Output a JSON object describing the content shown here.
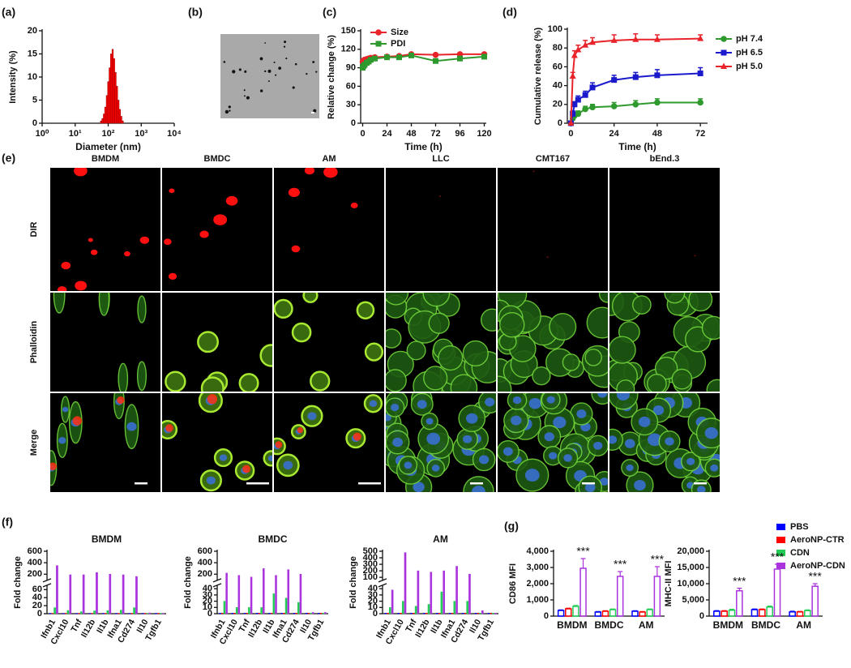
{
  "chart_data": [
    {
      "type": "histogram",
      "panel_label": "(a)",
      "xlabel": "Diameter (nm)",
      "ylabel": "Intensity (%)",
      "xscale": "log",
      "xlim": [
        1,
        10000
      ],
      "xticks": [
        {
          "value": 1,
          "label": "10⁰"
        },
        {
          "value": 10,
          "label": "10¹"
        },
        {
          "value": 100,
          "label": "10²"
        },
        {
          "value": 1000,
          "label": "10³"
        },
        {
          "value": 10000,
          "label": "10⁴"
        }
      ],
      "ylim": [
        0,
        20
      ],
      "yticks": [
        0,
        5,
        10,
        15,
        20
      ],
      "bins": [
        58,
        64,
        71,
        78,
        87,
        96,
        106,
        117,
        130,
        143,
        158,
        175,
        193,
        214,
        236,
        261,
        289
      ],
      "values": [
        0.5,
        1,
        2,
        3.5,
        6,
        9,
        12,
        15,
        16,
        14,
        11,
        8,
        5,
        3,
        1.5,
        0.5
      ],
      "color": "#ff0000"
    },
    {
      "type": "line",
      "panel_label": "(c)",
      "xlabel": "Time (h)",
      "ylabel": "Relative change (%)",
      "xlim": [
        -2,
        122
      ],
      "xticks": [
        0,
        24,
        48,
        72,
        96,
        120
      ],
      "ylim": [
        0,
        150
      ],
      "yticks": [
        0,
        30,
        60,
        90,
        120,
        150
      ],
      "x": [
        0,
        1,
        2,
        4,
        6,
        8,
        12,
        24,
        36,
        48,
        72,
        96,
        120
      ],
      "legend": "top-left",
      "series": [
        {
          "name": "Size",
          "color": "#e8232a",
          "marker": "circle",
          "values": [
            100,
            102,
            103,
            104,
            105,
            106,
            107,
            108,
            109,
            112,
            111,
            112,
            112
          ]
        },
        {
          "name": "PDI",
          "color": "#2e9a2e",
          "marker": "square",
          "values": [
            90,
            93,
            95,
            98,
            100,
            103,
            105,
            107,
            107,
            110,
            101,
            105,
            108
          ]
        }
      ]
    },
    {
      "type": "line",
      "panel_label": "(d)",
      "xlabel": "Time (h)",
      "ylabel": "Cumulative release (%)",
      "xlim": [
        -2,
        76
      ],
      "xticks": [
        0,
        24,
        48,
        72
      ],
      "ylim": [
        0,
        100
      ],
      "yticks": [
        0,
        20,
        40,
        60,
        80,
        100
      ],
      "x": [
        0,
        1,
        2,
        4,
        8,
        12,
        24,
        36,
        48,
        72
      ],
      "legend": "right",
      "series": [
        {
          "name": "pH 7.4",
          "color": "#2e9a2e",
          "marker": "circle",
          "values": [
            0,
            5,
            8,
            10,
            15,
            17,
            18,
            20,
            22,
            22
          ],
          "errors": [
            0,
            2,
            2,
            3,
            3,
            3,
            4,
            4,
            4,
            4
          ]
        },
        {
          "name": "pH 6.5",
          "color": "#1a1acc",
          "marker": "square",
          "values": [
            0,
            10,
            20,
            25,
            30,
            38,
            46,
            49,
            51,
            53
          ],
          "errors": [
            0,
            3,
            3,
            4,
            4,
            5,
            5,
            5,
            6,
            6
          ]
        },
        {
          "name": "pH 5.0",
          "color": "#e8232a",
          "marker": "triangle",
          "values": [
            0,
            50,
            72,
            78,
            83,
            86,
            88,
            89,
            89,
            90
          ],
          "errors": [
            0,
            4,
            5,
            5,
            5,
            5,
            6,
            6,
            5,
            4
          ]
        }
      ]
    },
    {
      "type": "bar",
      "panel_label": "(f)",
      "title": "BMDM",
      "ylabel": "Fold change",
      "categories": [
        "Ifnb1",
        "Cxcl10",
        "Tnf",
        "Il12b",
        "Il1b",
        "Ifna1",
        "Cd274",
        "Il10",
        "Tgfb1"
      ],
      "ylim": [
        0,
        600
      ],
      "ybreak": [
        70,
        100
      ],
      "yticks": [
        0,
        20,
        40,
        60,
        200,
        400,
        600
      ],
      "series": [
        {
          "color": "#0000ff",
          "values": [
            1,
            1,
            1,
            1,
            1,
            1,
            1,
            1,
            1
          ]
        },
        {
          "color": "#ff0000",
          "values": [
            1,
            1,
            1,
            1,
            1,
            1,
            1,
            1,
            1
          ]
        },
        {
          "color": "#22cc55",
          "values": [
            15,
            8,
            5,
            7,
            8,
            9,
            15,
            1,
            1
          ]
        },
        {
          "color": "#aa33dd",
          "values": [
            350,
            190,
            190,
            230,
            200,
            190,
            160,
            2,
            1
          ]
        }
      ]
    },
    {
      "type": "bar",
      "title": "BMDC",
      "ylabel": "Fold change",
      "categories": [
        "Ifnb1",
        "Cxcl10",
        "Tnf",
        "Il12b",
        "Il1b",
        "Ifna1",
        "Cd274",
        "Il10",
        "Tgfb1"
      ],
      "ylim": [
        0,
        600
      ],
      "ybreak": [
        45,
        100
      ],
      "yticks": [
        0,
        10,
        20,
        30,
        40,
        200,
        400,
        600
      ],
      "series": [
        {
          "color": "#0000ff",
          "values": [
            1,
            1,
            1,
            1,
            1,
            1,
            1,
            1,
            1
          ]
        },
        {
          "color": "#ff0000",
          "values": [
            1,
            1,
            1,
            1,
            1,
            1,
            1,
            1,
            1
          ]
        },
        {
          "color": "#22cc55",
          "values": [
            20,
            10,
            10,
            10,
            32,
            25,
            18,
            1,
            1
          ]
        },
        {
          "color": "#aa33dd",
          "values": [
            220,
            180,
            150,
            300,
            180,
            280,
            200,
            2,
            2
          ]
        }
      ]
    },
    {
      "type": "bar",
      "title": "AM",
      "ylabel": "Fold change",
      "categories": [
        "Ifnb1",
        "Cxcl10",
        "Tnf",
        "Il12b",
        "Il1b",
        "Ifna1",
        "Cd274",
        "Il10",
        "Tgfb1"
      ],
      "ylim": [
        0,
        500
      ],
      "ybreak": [
        45,
        60
      ],
      "yticks": [
        0,
        10,
        20,
        30,
        40,
        100,
        200,
        300,
        400,
        500
      ],
      "series": [
        {
          "color": "#0000ff",
          "values": [
            1,
            1,
            1,
            1,
            1,
            1,
            1,
            1,
            1
          ]
        },
        {
          "color": "#ff0000",
          "values": [
            1,
            1,
            1,
            1,
            1,
            1,
            1,
            1,
            1
          ]
        },
        {
          "color": "#22cc55",
          "values": [
            10,
            20,
            12,
            15,
            35,
            20,
            20,
            1,
            1
          ]
        },
        {
          "color": "#aa33dd",
          "values": [
            38,
            480,
            200,
            180,
            200,
            270,
            150,
            5,
            1
          ]
        }
      ]
    },
    {
      "type": "bar",
      "panel_label": "(g)",
      "ylabel": "CD86 MFI",
      "categories": [
        "BMDM",
        "BMDC",
        "AM"
      ],
      "ylim": [
        0,
        4000
      ],
      "yticks": [
        0,
        {
          "value": 1000,
          "label": "1,000"
        },
        {
          "value": 2000,
          "label": "2,000"
        },
        {
          "value": 3000,
          "label": "3,000"
        },
        {
          "value": 4000,
          "label": "4,000"
        }
      ],
      "bar_fill": false,
      "legend": "top-right",
      "series": [
        {
          "name": "PBS",
          "color": "#0000ff",
          "values": [
            350,
            250,
            300
          ],
          "errors": [
            30,
            30,
            30
          ]
        },
        {
          "name": "AeroNP-CTR",
          "color": "#ff0000",
          "values": [
            450,
            300,
            250
          ],
          "errors": [
            40,
            30,
            30
          ]
        },
        {
          "name": "CDN",
          "color": "#22cc55",
          "values": [
            600,
            400,
            400
          ],
          "errors": [
            60,
            40,
            40
          ]
        },
        {
          "name": "AeroNP-CDN",
          "color": "#aa33dd",
          "values": [
            2950,
            2450,
            2450
          ],
          "errors": [
            600,
            300,
            600
          ]
        }
      ],
      "annotations": [
        "***",
        "***",
        "***"
      ]
    },
    {
      "type": "bar",
      "ylabel": "MHC-II MFI",
      "categories": [
        "BMDM",
        "BMDC",
        "AM"
      ],
      "ylim": [
        0,
        20000
      ],
      "yticks": [
        0,
        {
          "value": 5000,
          "label": "5,000"
        },
        {
          "value": 10000,
          "label": "10,000"
        },
        {
          "value": 15000,
          "label": "15,000"
        },
        {
          "value": 20000,
          "label": "20,000"
        }
      ],
      "bar_fill": false,
      "series": [
        {
          "color": "#0000ff",
          "values": [
            1500,
            2000,
            1300
          ],
          "errors": [
            200,
            200,
            200
          ]
        },
        {
          "color": "#ff0000",
          "values": [
            1500,
            2000,
            1300
          ],
          "errors": [
            200,
            200,
            150
          ]
        },
        {
          "color": "#22cc55",
          "values": [
            1800,
            2800,
            1700
          ],
          "errors": [
            300,
            300,
            200
          ]
        },
        {
          "color": "#aa33dd",
          "values": [
            7800,
            14500,
            9200
          ],
          "errors": [
            800,
            1500,
            800
          ]
        }
      ],
      "annotations": [
        "***",
        "***",
        "***"
      ]
    }
  ],
  "images": {
    "b": {
      "label": "(b)"
    },
    "e": {
      "label": "(e)",
      "columns": [
        "BMDM",
        "BMDC",
        "AM",
        "LLC",
        "CMT167",
        "bEnd.3"
      ],
      "rows": [
        "DIR",
        "Phalloidin",
        "Merge"
      ]
    }
  }
}
